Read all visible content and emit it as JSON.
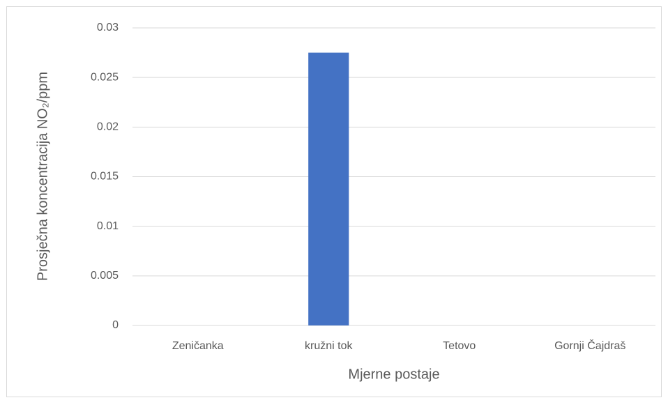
{
  "chart_data": {
    "type": "bar",
    "xlabel": "Mjerne postaje",
    "ylabel": "Prosječna koncentracija NO₂/ppm",
    "categories": [
      "Zeničanka",
      "kružni tok",
      "Tetovo",
      "Gornji Čajdraš"
    ],
    "values": [
      0,
      0.0275,
      0,
      0
    ],
    "color": "#4472c4",
    "ylim": [
      0,
      0.03
    ],
    "yticks": [
      0,
      0.005,
      0.01,
      0.015,
      0.02,
      0.025,
      0.03
    ],
    "grid": true
  }
}
